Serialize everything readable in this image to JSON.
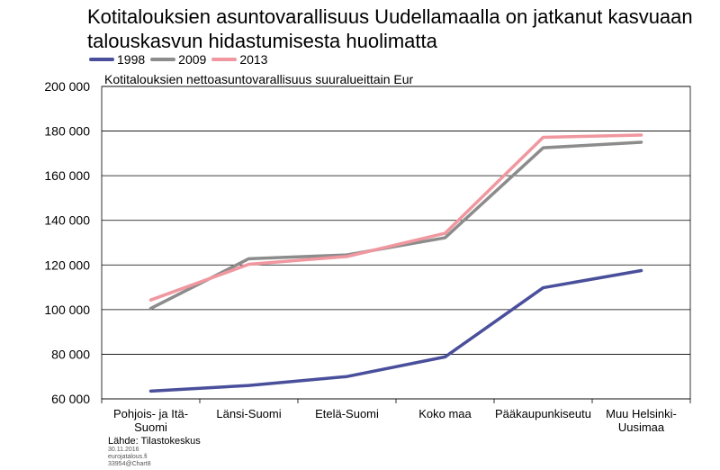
{
  "title": "Kotitalouksien asuntovarallisuus Uudellamaalla on jatkanut kasvuaan talouskasvun hidastumisesta huolimatta",
  "subtitle": "Kotitalouksien nettoasuntovarallisuus suuralueittain Eur",
  "source": "Lähde: Tilastokeskus",
  "meta": [
    "30.11.2016",
    "eurojatalous.fi",
    "33954@Chart8"
  ],
  "chart_data": {
    "type": "line",
    "categories": [
      "Pohjois- ja Itä-Suomi",
      "Länsi-Suomi",
      "Etelä-Suomi",
      "Koko maa",
      "Pääkaupunkiseutu",
      "Muu Helsinki-Uusimaa"
    ],
    "category_lines": [
      [
        "Pohjois- ja Itä-",
        "Suomi"
      ],
      [
        "Länsi-Suomi"
      ],
      [
        "Etelä-Suomi"
      ],
      [
        "Koko maa"
      ],
      [
        "Pääkaupunkiseutu"
      ],
      [
        "Muu Helsinki-",
        "Uusimaa"
      ]
    ],
    "ylim": [
      60000,
      200000
    ],
    "yticks": [
      60000,
      80000,
      100000,
      120000,
      140000,
      160000,
      180000,
      200000
    ],
    "ytick_labels": [
      "60 000",
      "80 000",
      "100 000",
      "120 000",
      "140 000",
      "160 000",
      "180 000",
      "200 000"
    ],
    "grid": true,
    "legend_position": "top-left",
    "series": [
      {
        "name": "1998",
        "color": "#4a4f9b",
        "values": [
          63500,
          66000,
          70000,
          78800,
          109800,
          117500
        ]
      },
      {
        "name": "2009",
        "color": "#8c8c8c",
        "values": [
          100500,
          122800,
          124500,
          132200,
          172500,
          175000
        ]
      },
      {
        "name": "2013",
        "color": "#f0979f",
        "values": [
          104300,
          120300,
          123800,
          134200,
          177200,
          178200
        ]
      }
    ]
  }
}
